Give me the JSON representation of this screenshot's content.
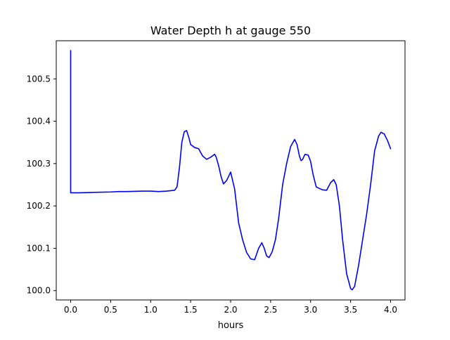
{
  "chart_data": {
    "type": "line",
    "title": "Water Depth h at gauge 550",
    "xlabel": "hours",
    "ylabel": "",
    "xlim": [
      -0.18,
      4.18
    ],
    "ylim": [
      99.978,
      100.59
    ],
    "x_ticks": [
      0.0,
      0.5,
      1.0,
      1.5,
      2.0,
      2.5,
      3.0,
      3.5,
      4.0
    ],
    "x_tick_labels": [
      "0.0",
      "0.5",
      "1.0",
      "1.5",
      "2.0",
      "2.5",
      "3.0",
      "3.5",
      "4.0"
    ],
    "y_ticks": [
      100.0,
      100.1,
      100.2,
      100.3,
      100.4,
      100.5
    ],
    "y_tick_labels": [
      "100.0",
      "100.1",
      "100.2",
      "100.3",
      "100.4",
      "100.5"
    ],
    "grid": false,
    "legend": "none",
    "series": [
      {
        "color": "#0000ff",
        "x": [
          0.0,
          0.0,
          0.005,
          0.1,
          0.3,
          0.5,
          0.6,
          0.7,
          0.9,
          1.0,
          1.1,
          1.2,
          1.3,
          1.33,
          1.36,
          1.39,
          1.42,
          1.45,
          1.48,
          1.5,
          1.55,
          1.6,
          1.65,
          1.7,
          1.75,
          1.8,
          1.82,
          1.85,
          1.88,
          1.91,
          1.95,
          2.0,
          2.05,
          2.1,
          2.15,
          2.2,
          2.25,
          2.3,
          2.35,
          2.39,
          2.42,
          2.45,
          2.48,
          2.52,
          2.56,
          2.6,
          2.65,
          2.7,
          2.75,
          2.8,
          2.83,
          2.86,
          2.88,
          2.9,
          2.93,
          2.97,
          3.0,
          3.03,
          3.07,
          3.1,
          3.15,
          3.2,
          3.25,
          3.29,
          3.32,
          3.36,
          3.4,
          3.45,
          3.5,
          3.52,
          3.55,
          3.6,
          3.65,
          3.7,
          3.75,
          3.8,
          3.85,
          3.88,
          3.92,
          3.96,
          4.0
        ],
        "y": [
          100.567,
          100.231,
          100.231,
          100.231,
          100.232,
          100.233,
          100.234,
          100.234,
          100.235,
          100.235,
          100.234,
          100.235,
          100.237,
          100.245,
          100.29,
          100.35,
          100.375,
          100.378,
          100.36,
          100.345,
          100.338,
          100.335,
          100.318,
          100.31,
          100.315,
          100.322,
          100.315,
          100.295,
          100.27,
          100.252,
          100.26,
          100.28,
          100.24,
          100.16,
          100.12,
          100.09,
          100.075,
          100.073,
          100.1,
          100.113,
          100.1,
          100.082,
          100.078,
          100.092,
          100.12,
          100.17,
          100.25,
          100.3,
          100.34,
          100.357,
          100.345,
          100.318,
          100.307,
          100.31,
          100.322,
          100.32,
          100.305,
          100.275,
          100.245,
          100.242,
          100.238,
          100.237,
          100.255,
          100.262,
          100.25,
          100.2,
          100.12,
          100.04,
          100.005,
          100.002,
          100.01,
          100.06,
          100.12,
          100.18,
          100.25,
          100.33,
          100.365,
          100.374,
          100.37,
          100.355,
          100.335
        ]
      }
    ]
  }
}
